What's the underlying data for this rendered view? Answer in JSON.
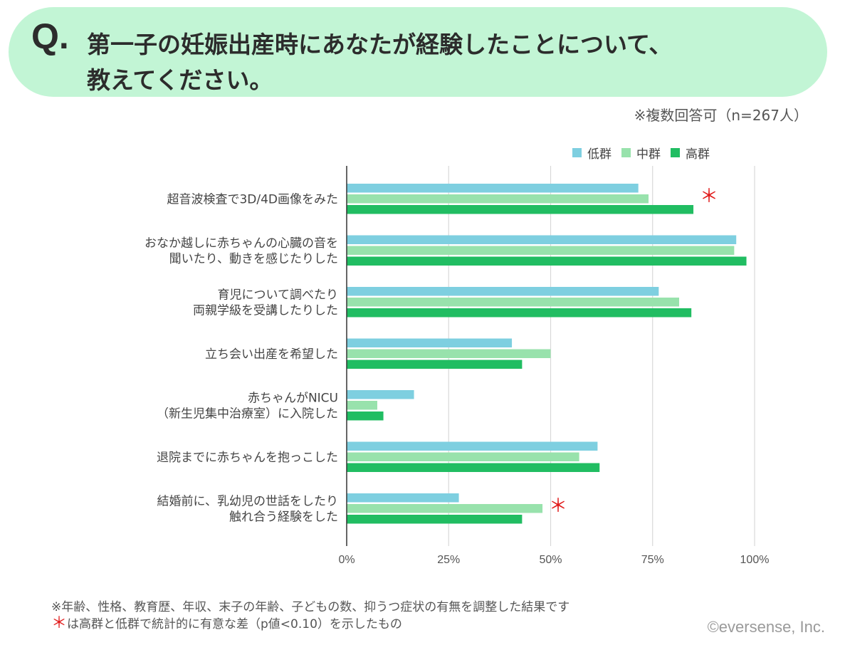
{
  "header": {
    "q_mark": "Q.",
    "question_line1": "第一子の妊娠出産時にあなたが経験したことについて、",
    "question_line2": "教えてください。"
  },
  "note_n": "※複数回答可（n=267人）",
  "chart_data": {
    "type": "bar",
    "orientation": "horizontal",
    "categories": [
      [
        "超音波検査で3D/4D画像をみた"
      ],
      [
        "おなか越しに赤ちゃんの心臓の音を",
        "聞いたり、動きを感じたりした"
      ],
      [
        "育児について調べたり",
        "両親学級を受講したりした"
      ],
      [
        "立ち会い出産を希望した"
      ],
      [
        "赤ちゃんがNICU",
        "（新生児集中治療室）に入院した"
      ],
      [
        "退院までに赤ちゃんを抱っこした"
      ],
      [
        "結婚前に、乳幼児の世話をしたり",
        "触れ合う経験をした"
      ]
    ],
    "series": [
      {
        "name": "低群",
        "color": "#7ecfe0",
        "values": [
          71.5,
          95.5,
          76.5,
          40.5,
          16.5,
          61.5,
          27.5
        ]
      },
      {
        "name": "中群",
        "color": "#98e2ac",
        "values": [
          74,
          95,
          81.5,
          50,
          7.5,
          57,
          48
        ]
      },
      {
        "name": "高群",
        "color": "#21bd62",
        "values": [
          85,
          98,
          84.5,
          43,
          9,
          62,
          43
        ]
      }
    ],
    "significance_marks": [
      {
        "category_index": 0,
        "symbol": "＊"
      },
      {
        "category_index": 6,
        "symbol": "＊"
      }
    ],
    "xlim": [
      0,
      100
    ],
    "xticks": [
      0,
      25,
      50,
      75,
      100
    ],
    "xtick_labels": [
      "0%",
      "25%",
      "50%",
      "75%",
      "100%"
    ],
    "grid": true,
    "legend_position": "top-right"
  },
  "footnotes": {
    "line1": "※年齢、性格、教育歴、年収、末子の年齢、子どもの数、抑うつ症状の有無を調整した結果です",
    "line2_star": "＊",
    "line2_text": "は高群と低群で統計的に有意な差（p値<0.10）を示したもの"
  },
  "copyright": "©eversense, Inc."
}
